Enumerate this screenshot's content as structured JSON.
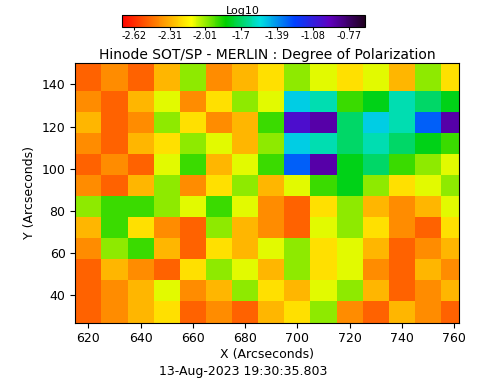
{
  "chart_data": {
    "type": "heatmap",
    "title": "Hinode SOT/SP - MERLIN : Degree of Polarization",
    "x_label": "X (Arcseconds)",
    "y_label": "Y (Arcseconds)",
    "timestamp": "13-Aug-2023 19:30:35.803",
    "xlim": [
      615,
      762
    ],
    "ylim": [
      27,
      150
    ],
    "xticks": [
      620,
      640,
      660,
      680,
      700,
      720,
      740,
      760
    ],
    "yticks": [
      40,
      60,
      80,
      100,
      120,
      140
    ],
    "x_edges": [
      615,
      625,
      635,
      645,
      655,
      665,
      675,
      685,
      695,
      705,
      715,
      725,
      735,
      745,
      755,
      762
    ],
    "y_edges": [
      27,
      37,
      47,
      57,
      67,
      77,
      87,
      97,
      107,
      117,
      127,
      137,
      150
    ],
    "cells": [
      [
        -2.5,
        -2.4,
        -2.3,
        -2.2,
        -2.5,
        -2.4,
        -2.5,
        -2.3,
        -2.2,
        -2.0,
        -2.4,
        -2.5,
        -2.3,
        -2.4,
        -2.5
      ],
      [
        -2.5,
        -2.4,
        -2.3,
        -2.1,
        -2.4,
        -2.3,
        -2.0,
        -2.2,
        -2.3,
        -2.1,
        -2.0,
        -2.3,
        -2.5,
        -2.4,
        -2.3
      ],
      [
        -2.5,
        -2.3,
        -2.4,
        -2.5,
        -2.2,
        -2.0,
        -2.1,
        -2.3,
        -2.0,
        -2.2,
        -2.1,
        -2.4,
        -2.5,
        -2.3,
        -2.4
      ],
      [
        -2.4,
        -2.0,
        -1.9,
        -2.3,
        -2.5,
        -2.2,
        -2.3,
        -2.1,
        -2.0,
        -2.2,
        -2.1,
        -2.3,
        -2.5,
        -2.4,
        -2.3
      ],
      [
        -2.3,
        -1.9,
        -2.2,
        -2.4,
        -2.5,
        -2.0,
        -2.3,
        -2.4,
        -2.5,
        -2.1,
        -2.0,
        -2.2,
        -2.4,
        -2.5,
        -2.2
      ],
      [
        -2.0,
        -1.9,
        -1.9,
        -2.0,
        -2.1,
        -1.9,
        -2.1,
        -2.4,
        -2.5,
        -2.2,
        -2.0,
        -2.3,
        -2.4,
        -2.3,
        -2.1
      ],
      [
        -2.4,
        -2.5,
        -2.3,
        -2.0,
        -2.4,
        -2.2,
        -2.0,
        -2.3,
        -2.1,
        -1.9,
        -1.8,
        -2.0,
        -2.2,
        -2.1,
        -2.0
      ],
      [
        -2.5,
        -2.4,
        -2.5,
        -2.1,
        -1.9,
        -2.3,
        -2.1,
        -1.9,
        -1.3,
        -0.9,
        -1.8,
        -1.7,
        -1.9,
        -2.0,
        -2.1
      ],
      [
        -2.4,
        -2.5,
        -2.3,
        -2.2,
        -2.0,
        -2.1,
        -2.3,
        -2.0,
        -1.5,
        -1.6,
        -1.7,
        -1.6,
        -1.7,
        -1.8,
        -1.9
      ],
      [
        -2.3,
        -2.5,
        -2.4,
        -2.0,
        -2.2,
        -2.4,
        -2.3,
        -1.9,
        -1.0,
        -0.9,
        -1.7,
        -1.5,
        -1.6,
        -1.3,
        -0.9
      ],
      [
        -2.4,
        -2.5,
        -2.3,
        -2.1,
        -2.4,
        -2.2,
        -2.0,
        -2.1,
        -1.5,
        -1.6,
        -1.9,
        -1.8,
        -1.6,
        -1.7,
        -1.8
      ],
      [
        -2.5,
        -2.4,
        -2.5,
        -2.3,
        -2.0,
        -2.4,
        -2.3,
        -2.2,
        -2.0,
        -2.1,
        -2.2,
        -2.1,
        -2.3,
        -2.0,
        -2.2
      ]
    ],
    "colorbar_label": "Log10",
    "colorbar_range": [
      -2.73,
      -0.64
    ],
    "colorbar_ticks": [
      -2.62,
      -2.31,
      -2.01,
      -1.7,
      -1.39,
      -1.08,
      -0.77
    ]
  }
}
